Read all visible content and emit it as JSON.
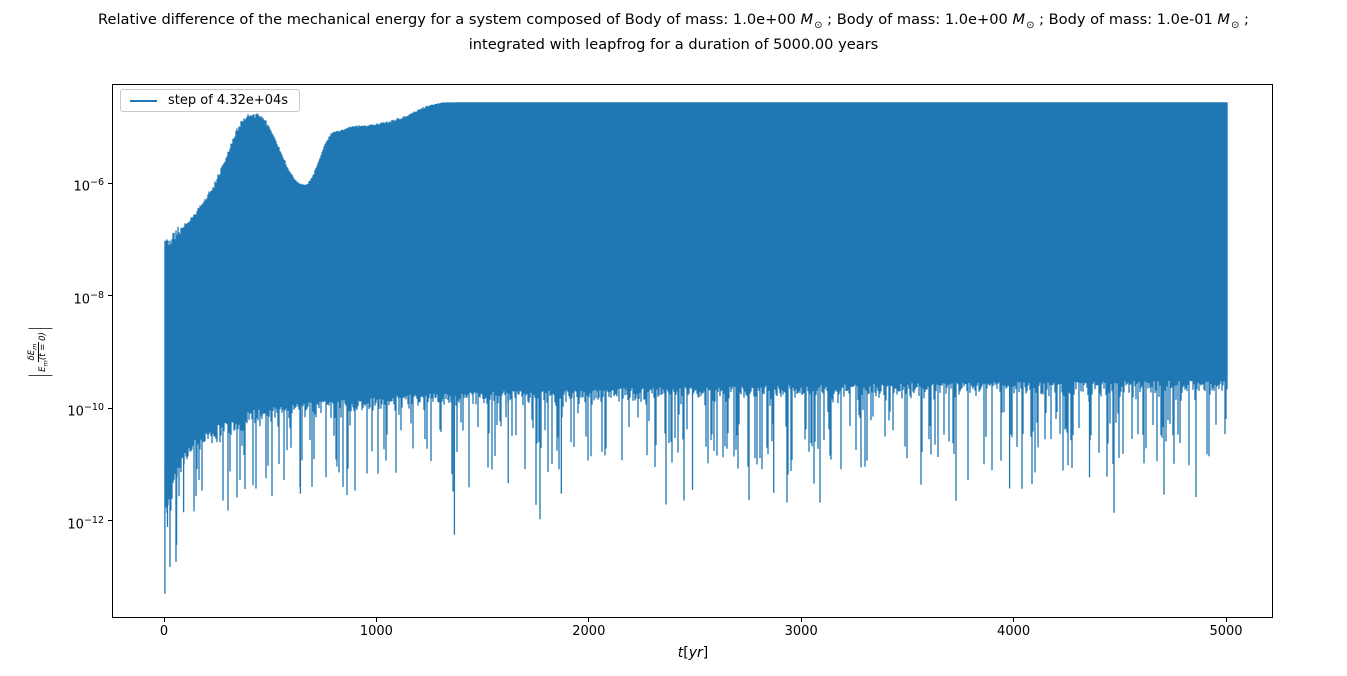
{
  "figure": {
    "title": {
      "parts": [
        "Relative difference of the mechanical energy for a system composed of Body of mass: 1.0e+00 ",
        "M",
        "⊙",
        " ; Body of mass: 1.0e+00 ",
        "M",
        "⊙",
        " ; Body of mass: 1.0e-01 ",
        "M",
        "⊙",
        " ;"
      ],
      "line2": "integrated with leapfrog for a duration of 5000.00 years"
    },
    "legend": {
      "label": "step of 4.32e+04s"
    },
    "axes": {
      "x_tick_labels": [
        "0",
        "1000",
        "2000",
        "3000",
        "4000",
        "5000"
      ],
      "y_tick_labels": [
        {
          "b": "10",
          "e": "−6"
        },
        {
          "b": "10",
          "e": "−8"
        },
        {
          "b": "10",
          "e": "−10"
        },
        {
          "b": "10",
          "e": "−12"
        }
      ],
      "xlabel": {
        "var": "t",
        "open": "[",
        "unit": "yr",
        "close": "]"
      },
      "ylabel": {
        "lbar": "|",
        "num": "δE",
        "num_sub": "m",
        "den": "E",
        "den_sub": "m",
        "den_tail": "(t = 0)",
        "rbar": "|"
      }
    },
    "colors": {
      "line": "#1f77b4",
      "spine": "#000000",
      "legend_border": "#c9c9c9"
    }
  },
  "chart_data": {
    "type": "line",
    "title": "Relative difference of the mechanical energy for a system composed of Body of mass: 1.0e+00 M⊙ ; Body of mass: 1.0e+00 M⊙ ; Body of mass: 1.0e-01 M⊙ ; integrated with leapfrog for a duration of 5000.00 years",
    "xlabel": "t [yr]",
    "ylabel": "|δE_m / E_m(t=0)|",
    "yscale": "log",
    "xlim": [
      -245,
      5220
    ],
    "ylim": [
      2e-14,
      5.5e-05
    ],
    "x_ticks": [
      0,
      1000,
      2000,
      3000,
      4000,
      5000
    ],
    "y_ticks": [
      1e-06,
      1e-08,
      1e-10,
      1e-12
    ],
    "grid": false,
    "legend_position": "upper left",
    "series": [
      {
        "name": "step of 4.32e+04s",
        "color": "#1f77b4",
        "description": "Oscillating relative mechanical-energy error |dE/E(t=0)| of a leapfrog-integrated 3-body system; dense oscillations fill the band between the upper and lower envelopes, with narrow downward spikes at energy-error zero crossings."
      }
    ],
    "system": {
      "bodies": [
        "1.0e+00 M⊙",
        "1.0e+00 M⊙",
        "1.0e-01 M⊙"
      ],
      "integrator": "leapfrog",
      "duration": "5000.00 years",
      "time_step": "4.32e+04 s"
    },
    "upper_envelope": {
      "t": [
        0,
        25,
        60,
        100,
        150,
        200,
        240,
        280,
        310,
        340,
        370,
        400,
        435,
        465,
        495,
        525,
        555,
        585,
        615,
        645,
        665,
        695,
        725,
        755,
        785,
        830,
        880,
        940,
        1000,
        1050,
        1100,
        1150,
        1200,
        1255,
        1310,
        1400,
        5000
      ],
      "value": [
        1e-07,
        8.5e-08,
        1.3e-07,
        1.8e-07,
        3e-07,
        5.5e-07,
        1e-06,
        2.2e-06,
        4.5e-06,
        8.5e-06,
        1.3e-05,
        1.6e-05,
        1.62e-05,
        1.45e-05,
        9.5e-06,
        5.5e-06,
        3e-06,
        1.7e-06,
        1.15e-06,
        9.2e-07,
        9e-07,
        1.25e-06,
        2.4e-06,
        4.8e-06,
        7.7e-06,
        8.6e-06,
        1e-05,
        1.05e-05,
        1.1e-05,
        1.2e-05,
        1.35e-05,
        1.62e-05,
        2.05e-05,
        2.45e-05,
        2.7e-05,
        2.72e-05,
        2.72e-05
      ]
    },
    "lower_envelope_base": {
      "t": [
        0,
        40,
        120,
        250,
        400,
        700,
        1200,
        2000,
        3000,
        4000,
        5000
      ],
      "value": [
        2e-12,
        6e-12,
        2.5e-11,
        5e-11,
        9e-11,
        1.3e-10,
        1.8e-10,
        2.2e-10,
        2.6e-10,
        2.9e-10,
        3.1e-10
      ]
    },
    "deep_spikes": {
      "t": [
        2,
        14,
        30,
        57,
        90,
        640,
        1365,
        1618,
        1868,
        2486,
        2868,
        3979,
        4355
      ],
      "value": [
        5e-14,
        7.7e-13,
        1.5e-12,
        3.7e-13,
        1.4e-12,
        3e-12,
        5.6e-13,
        4.6e-12,
        3e-12,
        3.5e-12,
        3.1e-12,
        3.7e-12,
        5.8e-12
      ]
    }
  }
}
